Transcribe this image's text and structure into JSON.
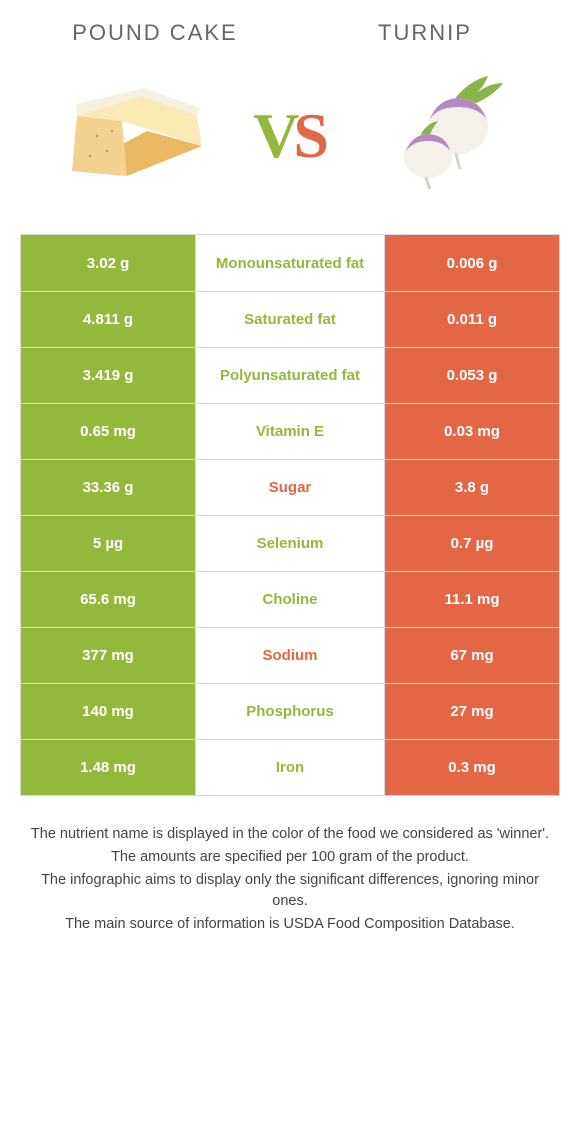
{
  "foods": {
    "left": {
      "title": "POUND CAKE",
      "color": "#94b83b"
    },
    "right": {
      "title": "TURNIP",
      "color": "#e36744"
    }
  },
  "vs_colors": {
    "V": "#94b83b",
    "S": "#e36744"
  },
  "page_bg": "#ffffff",
  "border_color": "#d9d9d9",
  "cell_text_white": "#ffffff",
  "note_color": "#444444",
  "rows": [
    {
      "label": "Monounsaturated fat",
      "left": "3.02 g",
      "right": "0.006 g",
      "winner": "left"
    },
    {
      "label": "Saturated fat",
      "left": "4.811 g",
      "right": "0.011 g",
      "winner": "left"
    },
    {
      "label": "Polyunsaturated fat",
      "left": "3.419 g",
      "right": "0.053 g",
      "winner": "left"
    },
    {
      "label": "Vitamin E",
      "left": "0.65 mg",
      "right": "0.03 mg",
      "winner": "left"
    },
    {
      "label": "Sugar",
      "left": "33.36 g",
      "right": "3.8 g",
      "winner": "right"
    },
    {
      "label": "Selenium",
      "left": "5 µg",
      "right": "0.7 µg",
      "winner": "left"
    },
    {
      "label": "Choline",
      "left": "65.6 mg",
      "right": "11.1 mg",
      "winner": "left"
    },
    {
      "label": "Sodium",
      "left": "377 mg",
      "right": "67 mg",
      "winner": "right"
    },
    {
      "label": "Phosphorus",
      "left": "140 mg",
      "right": "27 mg",
      "winner": "left"
    },
    {
      "label": "Iron",
      "left": "1.48 mg",
      "right": "0.3 mg",
      "winner": "left"
    }
  ],
  "notes": [
    "The nutrient name is displayed in the color of the food we considered as 'winner'.",
    "The amounts are specified per 100 gram of the product.",
    "The infographic aims to display only the significant differences, ignoring minor ones.",
    "The main source of information is USDA Food Composition Database."
  ]
}
